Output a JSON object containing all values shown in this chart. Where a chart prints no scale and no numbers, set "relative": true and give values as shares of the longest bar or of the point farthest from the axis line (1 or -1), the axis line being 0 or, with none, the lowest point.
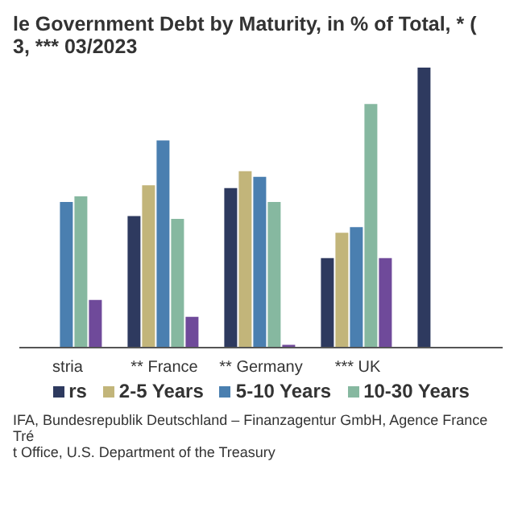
{
  "chart_data": {
    "type": "bar",
    "title": "le Government Debt by Maturity, in % of Total, * (",
    "subtitle": "3, *** 03/2023",
    "categories": [
      "stria",
      "** France",
      "** Germany",
      "*** UK",
      null
    ],
    "relative": true,
    "series": [
      {
        "name": "rs",
        "color": "#2e3a5f",
        "values": [
          null,
          0.47,
          0.57,
          0.32,
          1
        ]
      },
      {
        "name": "2-5 Years",
        "color": "#c2b57a",
        "values": [
          null,
          0.58,
          0.63,
          0.41,
          null
        ]
      },
      {
        "name": "5-10 Years",
        "color": "#4a7fb0",
        "values": [
          0.52,
          0.74,
          0.61,
          0.43,
          null
        ]
      },
      {
        "name": "10-30 Years",
        "color": "#86b8a0",
        "values": [
          0.54,
          0.46,
          0.52,
          0.87,
          null
        ]
      },
      {
        "color": "#6f4a9a",
        "values": [
          0.17,
          0.11,
          0.01,
          0.32,
          null
        ]
      }
    ],
    "legend": "bottom",
    "grid": false,
    "annotations": [
      "IFA, Bundesrepublik Deutschland – Finanzagentur GmbH, Agence France Tré",
      "t Office, U.S. Department of the Treasury"
    ]
  }
}
